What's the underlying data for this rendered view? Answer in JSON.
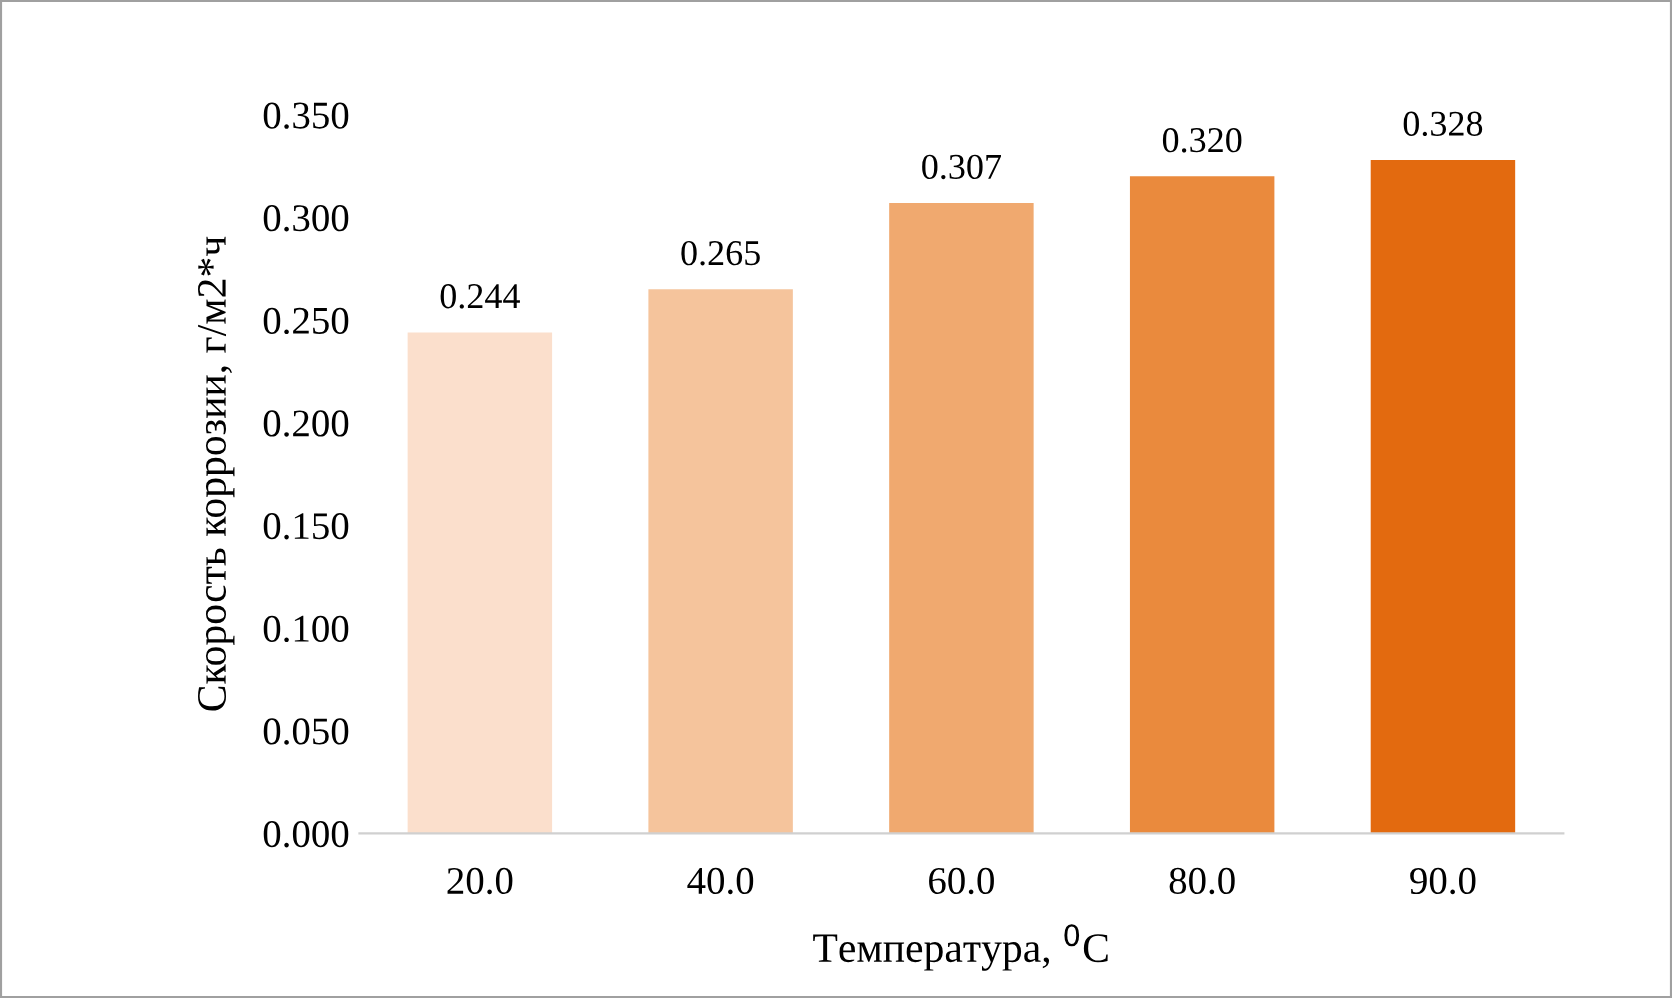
{
  "chart_data": {
    "type": "bar",
    "categories": [
      "20.0",
      "40.0",
      "60.0",
      "80.0",
      "90.0"
    ],
    "values": [
      0.244,
      0.265,
      0.307,
      0.32,
      0.328
    ],
    "value_labels": [
      "0.244",
      "0.265",
      "0.307",
      "0.320",
      "0.328"
    ],
    "colors": [
      "#fbdfcc",
      "#f5c49c",
      "#f0a96f",
      "#ea8a3d",
      "#e36a0f"
    ],
    "xlabel": "Температура, $^{0}$C",
    "ylabel": "Скорость коррозии, г/м2*ч",
    "ylim": [
      0,
      0.35
    ],
    "yticks": [
      {
        "value": 0,
        "label": "0.000"
      },
      {
        "value": 0.05,
        "label": "0.050"
      },
      {
        "value": 0.1,
        "label": "0.100"
      },
      {
        "value": 0.15,
        "label": "0.150"
      },
      {
        "value": 0.2,
        "label": "0.200"
      },
      {
        "value": 0.25,
        "label": "0.250"
      },
      {
        "value": 0.3,
        "label": "0.300"
      },
      {
        "value": 0.35,
        "label": "0.350"
      }
    ],
    "grid": false,
    "legend": false
  }
}
